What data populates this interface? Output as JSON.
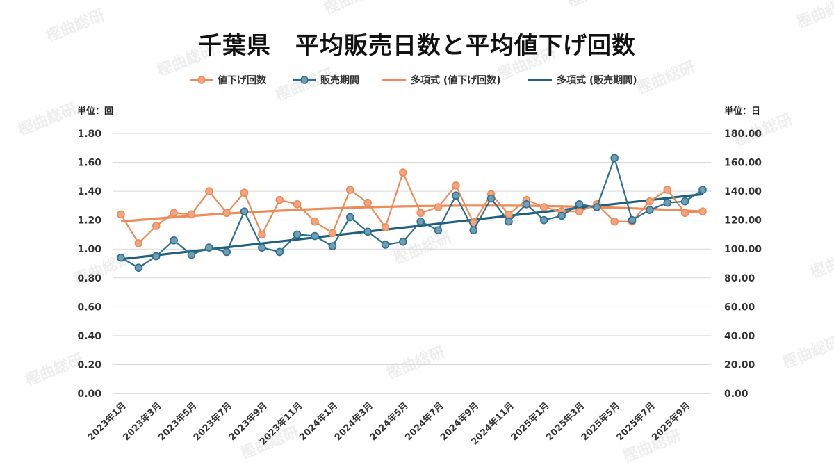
{
  "watermark": "樫曲総研",
  "chart_data": {
    "type": "line",
    "title": "千葉県　平均販売日数と平均値下げ回数",
    "y_left_unit": "単位：回",
    "y_right_unit": "単位：日",
    "ylim_left": [
      0,
      1.8
    ],
    "ylim_right": [
      0,
      180
    ],
    "y_left_ticks": [
      "0.00",
      "0.20",
      "0.40",
      "0.60",
      "0.80",
      "1.00",
      "1.20",
      "1.40",
      "1.60",
      "1.80"
    ],
    "y_right_ticks": [
      "0.00",
      "20.00",
      "40.00",
      "60.00",
      "80.00",
      "100.00",
      "120.00",
      "140.00",
      "160.00",
      "180.00"
    ],
    "grid": true,
    "legend_position": "top",
    "x_tick_labels": [
      "2023年1月",
      "2023年3月",
      "2023年5月",
      "2023年7月",
      "2023年9月",
      "2023年11月",
      "2024年1月",
      "2024年3月",
      "2024年5月",
      "2024年7月",
      "2024年9月",
      "2024年11月",
      "2025年1月",
      "2025年3月",
      "2025年5月",
      "2025年7月",
      "2025年9月"
    ],
    "x": [
      "2023年1月",
      "2023年2月",
      "2023年3月",
      "2023年4月",
      "2023年5月",
      "2023年6月",
      "2023年7月",
      "2023年8月",
      "2023年9月",
      "2023年10月",
      "2023年11月",
      "2023年12月",
      "2024年1月",
      "2024年2月",
      "2024年3月",
      "2024年4月",
      "2024年5月",
      "2024年6月",
      "2024年7月",
      "2024年8月",
      "2024年9月",
      "2024年10月",
      "2024年11月",
      "2024年12月",
      "2025年1月",
      "2025年2月",
      "2025年3月",
      "2025年4月",
      "2025年5月",
      "2025年6月",
      "2025年7月",
      "2025年8月",
      "2025年9月",
      "2025年10月"
    ],
    "series": [
      {
        "name": "値下げ回数",
        "axis": "left",
        "color": "#ED8A56",
        "values": [
          1.24,
          1.04,
          1.16,
          1.25,
          1.24,
          1.4,
          1.25,
          1.39,
          1.1,
          1.34,
          1.31,
          1.19,
          1.11,
          1.41,
          1.32,
          1.15,
          1.53,
          1.25,
          1.29,
          1.44,
          1.18,
          1.38,
          1.24,
          1.34,
          1.29,
          1.26,
          1.26,
          1.31,
          1.19,
          1.19,
          1.33,
          1.41,
          1.25,
          1.26
        ]
      },
      {
        "name": "販売期間",
        "axis": "right",
        "color": "#2C6E8E",
        "values": [
          94,
          87,
          95,
          106,
          96,
          101,
          98,
          126,
          101,
          98,
          110,
          109,
          102,
          122,
          112,
          103,
          105,
          119,
          113,
          137,
          113,
          135,
          119,
          131,
          120,
          123,
          131,
          129,
          163,
          120,
          127,
          132,
          133,
          141
        ]
      }
    ],
    "trendlines": [
      {
        "name": "多項式 (値下げ回数)",
        "axis": "left",
        "color": "#ED8A56",
        "start": 1.19,
        "end": 1.26,
        "peak": 1.3
      },
      {
        "name": "多項式 (販売期間)",
        "axis": "right",
        "color": "#1F5F80",
        "start": 93,
        "end": 138
      }
    ]
  }
}
